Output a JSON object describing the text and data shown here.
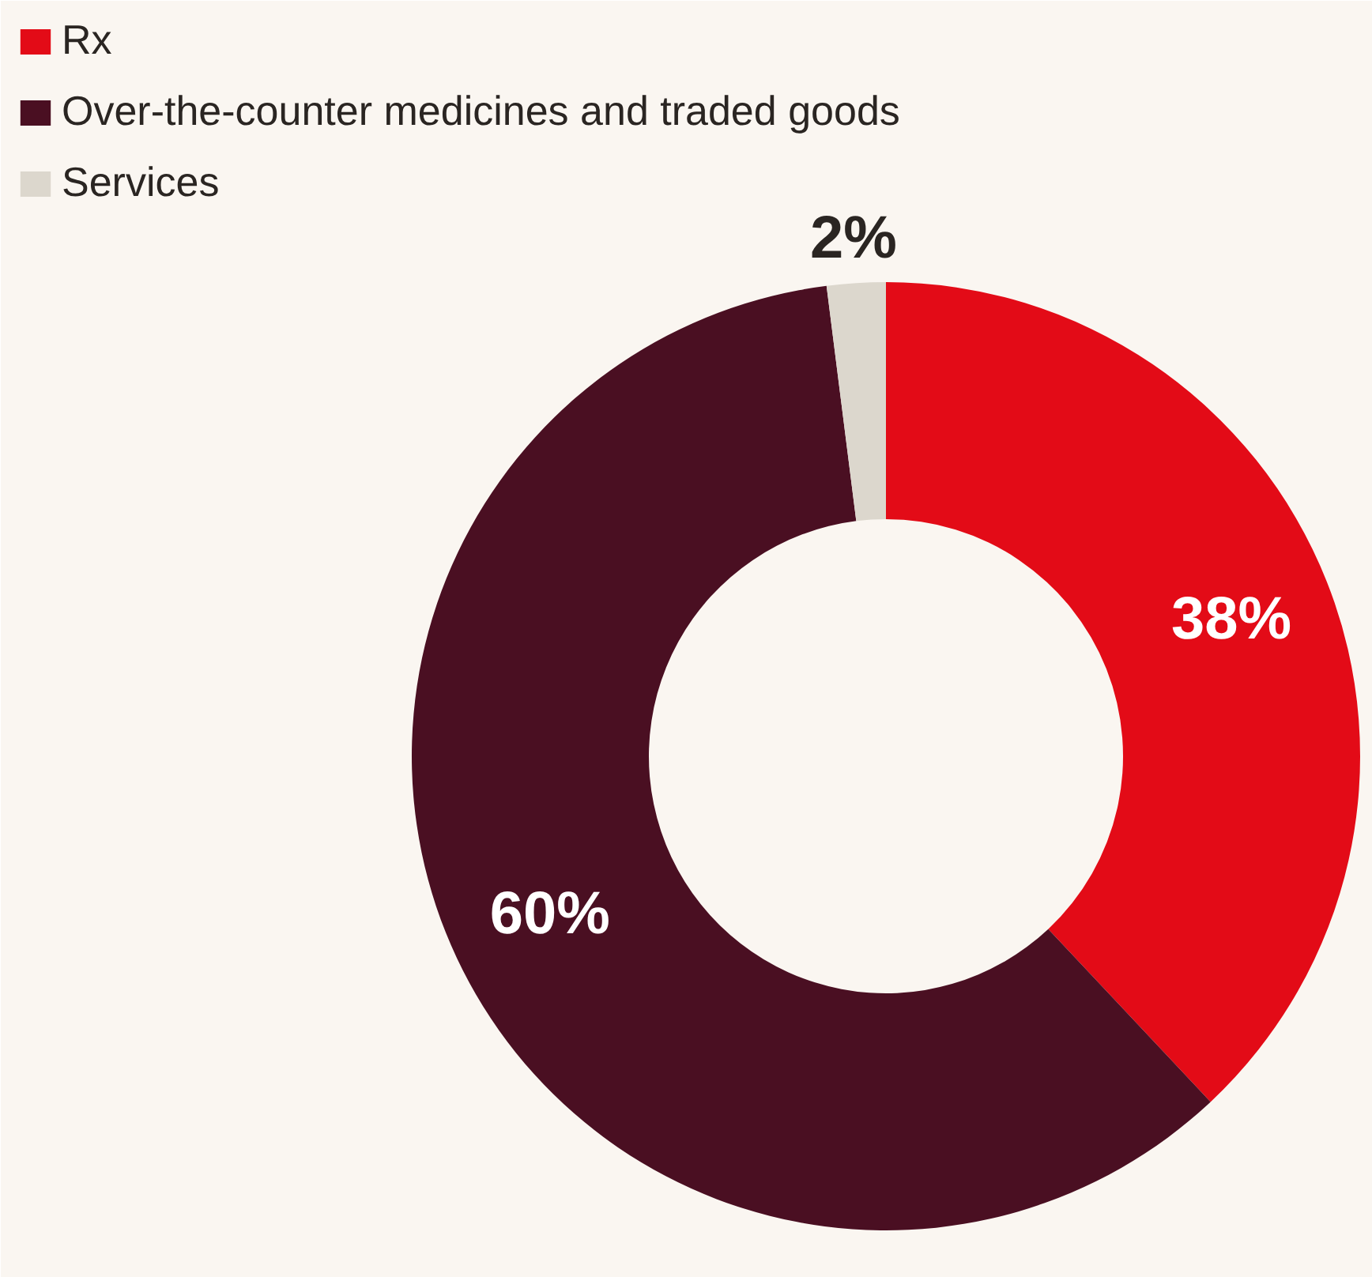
{
  "chart_data": {
    "type": "donut",
    "categories": [
      "Rx",
      "Over-the-counter medicines and traded goods",
      "Services"
    ],
    "values": [
      38,
      60,
      2
    ],
    "colors": [
      "#e30b17",
      "#4a0f22",
      "#dcd7cd"
    ],
    "value_labels": [
      "38%",
      "60%",
      "2%"
    ],
    "legend": "top left"
  }
}
